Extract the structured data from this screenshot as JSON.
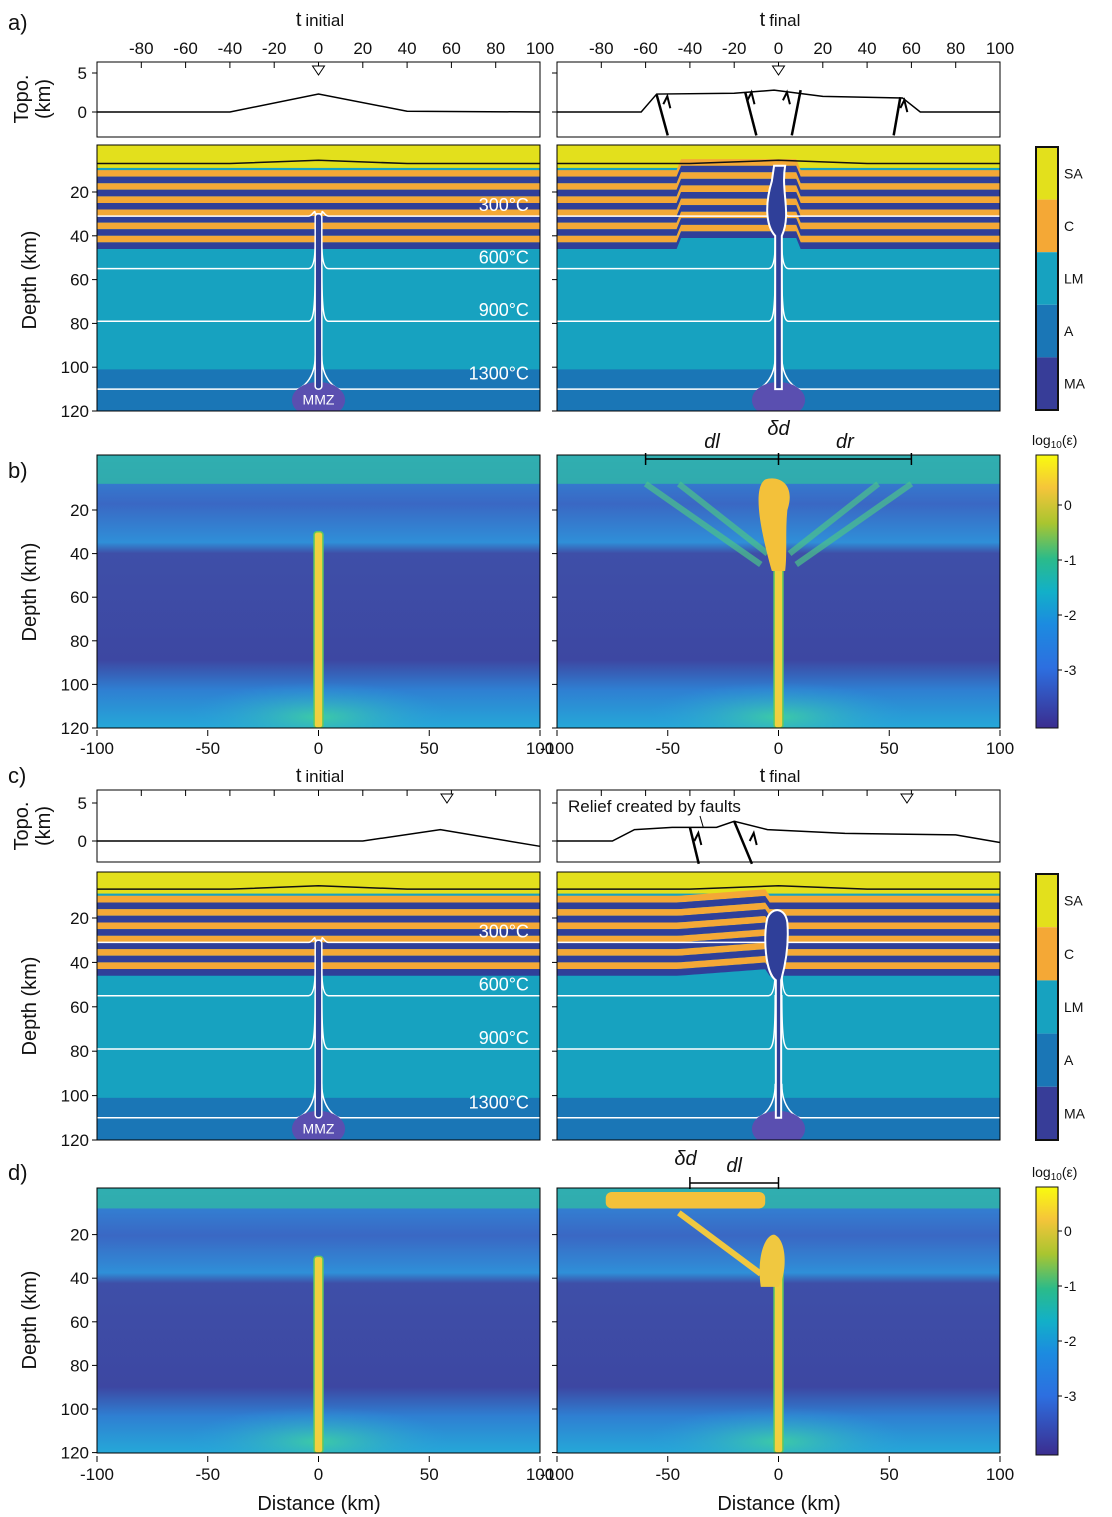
{
  "panel_labels": [
    "a)",
    "b)",
    "c)",
    "d)"
  ],
  "time": {
    "t": "t",
    "initial": "initial",
    "final": "final"
  },
  "axes": {
    "topo": "Topo.",
    "topo_unit": "(km)",
    "depth": "Depth (km)",
    "distance": "Distance (km)"
  },
  "topo_xticks": [
    -80,
    -60,
    -40,
    -20,
    0,
    20,
    40,
    60,
    80,
    100
  ],
  "topo_yticks": [
    5,
    0
  ],
  "depth_ticks": [
    20,
    40,
    60,
    80,
    100,
    120
  ],
  "distance_ticks": [
    -100,
    -50,
    0,
    50,
    100
  ],
  "isotherms": [
    "300°C",
    "600°C",
    "900°C",
    "1300°C"
  ],
  "mmz": "MMZ",
  "phases": [
    "SA",
    "C",
    "LM",
    "A",
    "MA"
  ],
  "strain_rate": {
    "log": "log",
    "base": "10",
    "symbol": "(ε)",
    "ticks": [
      0,
      -1,
      -2,
      -3
    ]
  },
  "annotations": {
    "delta_d": "δd",
    "dl": "dl",
    "dr": "dr",
    "relief": "Relief created by faults"
  }
}
